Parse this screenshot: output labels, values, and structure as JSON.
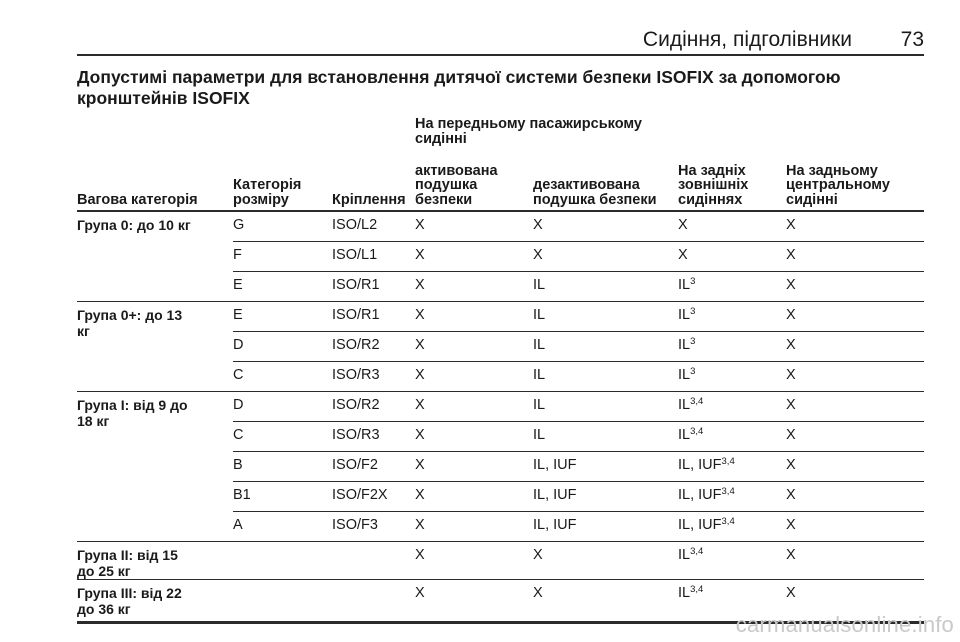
{
  "header": {
    "section": "Сидіння, підголівники",
    "page_number": "73"
  },
  "heading": "Допустимі параметри для встановлення дитячої системи безпеки ISOFIX за допомогою кронштейнів ISOFIX",
  "table": {
    "header_group": "На передньому пасажирському сидінні",
    "columns": [
      "Вагова категорія",
      "Категорія розміру",
      "Кріплення",
      "активована подушка безпеки",
      "дезактивована подушка безпеки",
      "На задніх зовнішніх сидіннях",
      "На задньому центральному сидінні"
    ],
    "rows": [
      {
        "group": "Група 0: до 10 кг",
        "size": "G",
        "fixture": "ISO/L2",
        "active": "X",
        "deactivated": "X",
        "rear_outer": "X",
        "rear_outer_sup": "",
        "rear_center": "X"
      },
      {
        "group": "",
        "size": "F",
        "fixture": "ISO/L1",
        "active": "X",
        "deactivated": "X",
        "rear_outer": "X",
        "rear_outer_sup": "",
        "rear_center": "X"
      },
      {
        "group": "",
        "size": "E",
        "fixture": "ISO/R1",
        "active": "X",
        "deactivated": "IL",
        "rear_outer": "IL",
        "rear_outer_sup": "3",
        "rear_center": "X"
      },
      {
        "group": "Група 0+: до 13 кг",
        "size": "E",
        "fixture": "ISO/R1",
        "active": "X",
        "deactivated": "IL",
        "rear_outer": "IL",
        "rear_outer_sup": "3",
        "rear_center": "X"
      },
      {
        "group": "",
        "size": "D",
        "fixture": "ISO/R2",
        "active": "X",
        "deactivated": "IL",
        "rear_outer": "IL",
        "rear_outer_sup": "3",
        "rear_center": "X"
      },
      {
        "group": "",
        "size": "C",
        "fixture": "ISO/R3",
        "active": "X",
        "deactivated": "IL",
        "rear_outer": "IL",
        "rear_outer_sup": "3",
        "rear_center": "X"
      },
      {
        "group": "Група I: від 9 до 18 кг",
        "size": "D",
        "fixture": "ISO/R2",
        "active": "X",
        "deactivated": "IL",
        "rear_outer": "IL",
        "rear_outer_sup": "3,4",
        "rear_center": "X"
      },
      {
        "group": "",
        "size": "C",
        "fixture": "ISO/R3",
        "active": "X",
        "deactivated": "IL",
        "rear_outer": "IL",
        "rear_outer_sup": "3,4",
        "rear_center": "X"
      },
      {
        "group": "",
        "size": "B",
        "fixture": "ISO/F2",
        "active": "X",
        "deactivated": "IL, IUF",
        "rear_outer": "IL, IUF",
        "rear_outer_sup": "3,4",
        "rear_center": "X"
      },
      {
        "group": "",
        "size": "B1",
        "fixture": "ISO/F2X",
        "active": "X",
        "deactivated": "IL, IUF",
        "rear_outer": "IL, IUF",
        "rear_outer_sup": "3,4",
        "rear_center": "X"
      },
      {
        "group": "",
        "size": "A",
        "fixture": "ISO/F3",
        "active": "X",
        "deactivated": "IL, IUF",
        "rear_outer": "IL, IUF",
        "rear_outer_sup": "3,4",
        "rear_center": "X"
      },
      {
        "group": "Група II: від 15 до 25 кг",
        "size": "",
        "fixture": "",
        "active": "X",
        "deactivated": "X",
        "rear_outer": "IL",
        "rear_outer_sup": "3,4",
        "rear_center": "X"
      },
      {
        "group": "Група III: від 22 до 36 кг",
        "size": "",
        "fixture": "",
        "active": "X",
        "deactivated": "X",
        "rear_outer": "IL",
        "rear_outer_sup": "3,4",
        "rear_center": "X"
      }
    ]
  },
  "watermark": "carmanualsonline.info"
}
